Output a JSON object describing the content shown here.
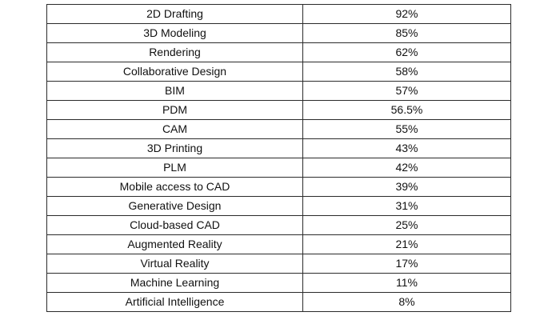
{
  "table": {
    "rows": [
      {
        "technology": "2D Drafting",
        "percent": "92%"
      },
      {
        "technology": "3D Modeling",
        "percent": "85%"
      },
      {
        "technology": "Rendering",
        "percent": "62%"
      },
      {
        "technology": "Collaborative Design",
        "percent": "58%"
      },
      {
        "technology": "BIM",
        "percent": "57%"
      },
      {
        "technology": "PDM",
        "percent": "56.5%"
      },
      {
        "technology": "CAM",
        "percent": "55%"
      },
      {
        "technology": "3D Printing",
        "percent": "43%"
      },
      {
        "technology": "PLM",
        "percent": "42%"
      },
      {
        "technology": "Mobile access to CAD",
        "percent": "39%"
      },
      {
        "technology": "Generative Design",
        "percent": "31%"
      },
      {
        "technology": "Cloud-based CAD",
        "percent": "25%"
      },
      {
        "technology": "Augmented Reality",
        "percent": "21%"
      },
      {
        "technology": "Virtual Reality",
        "percent": "17%"
      },
      {
        "technology": "Machine Learning",
        "percent": "11%"
      },
      {
        "technology": "Artificial Intelligence",
        "percent": "8%"
      }
    ]
  }
}
